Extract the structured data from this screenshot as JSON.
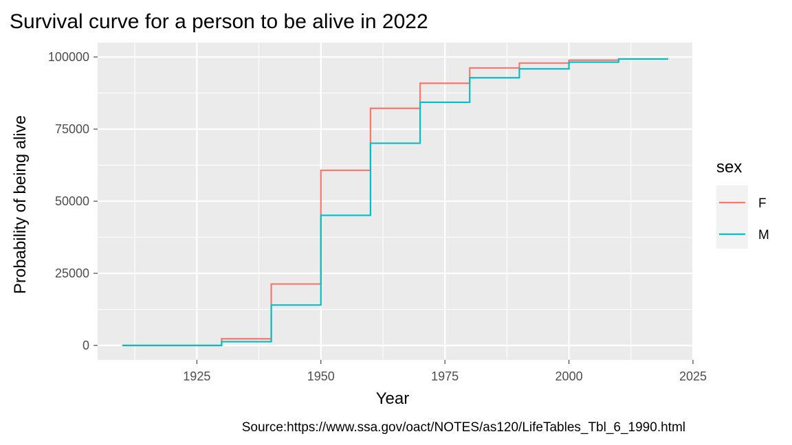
{
  "chart_data": {
    "type": "line",
    "step": true,
    "title": "Survival curve for a person to be alive in 2022",
    "xlabel": "Year",
    "ylabel": "Probability of being alive",
    "caption": "Source:https://www.ssa.gov/oact/NOTES/as120/LifeTables_Tbl_6_1990.html",
    "xlim": [
      1905,
      2025
    ],
    "ylim": [
      -5000,
      105000
    ],
    "x_ticks": [
      1925,
      1950,
      1975,
      2000,
      2025
    ],
    "x_tick_labels": [
      "1925",
      "1950",
      "1975",
      "2000",
      "2025"
    ],
    "y_ticks": [
      0,
      25000,
      50000,
      75000,
      100000
    ],
    "y_tick_labels": [
      "0",
      "25000",
      "50000",
      "75000",
      "100000"
    ],
    "grid": true,
    "legend": {
      "title": "sex",
      "position": "right"
    },
    "x": [
      1910,
      1920,
      1930,
      1940,
      1950,
      1960,
      1970,
      1980,
      1990,
      2000,
      2010,
      2020
    ],
    "series": [
      {
        "name": "F",
        "color": "#F8766D",
        "values": [
          0,
          0,
          2300,
          21300,
          60700,
          82200,
          90900,
          96200,
          97900,
          98900,
          99300,
          99300
        ]
      },
      {
        "name": "M",
        "color": "#00BFC4",
        "values": [
          0,
          0,
          1300,
          14000,
          45100,
          70100,
          84300,
          92800,
          95900,
          98200,
          99300,
          99300
        ]
      }
    ]
  }
}
